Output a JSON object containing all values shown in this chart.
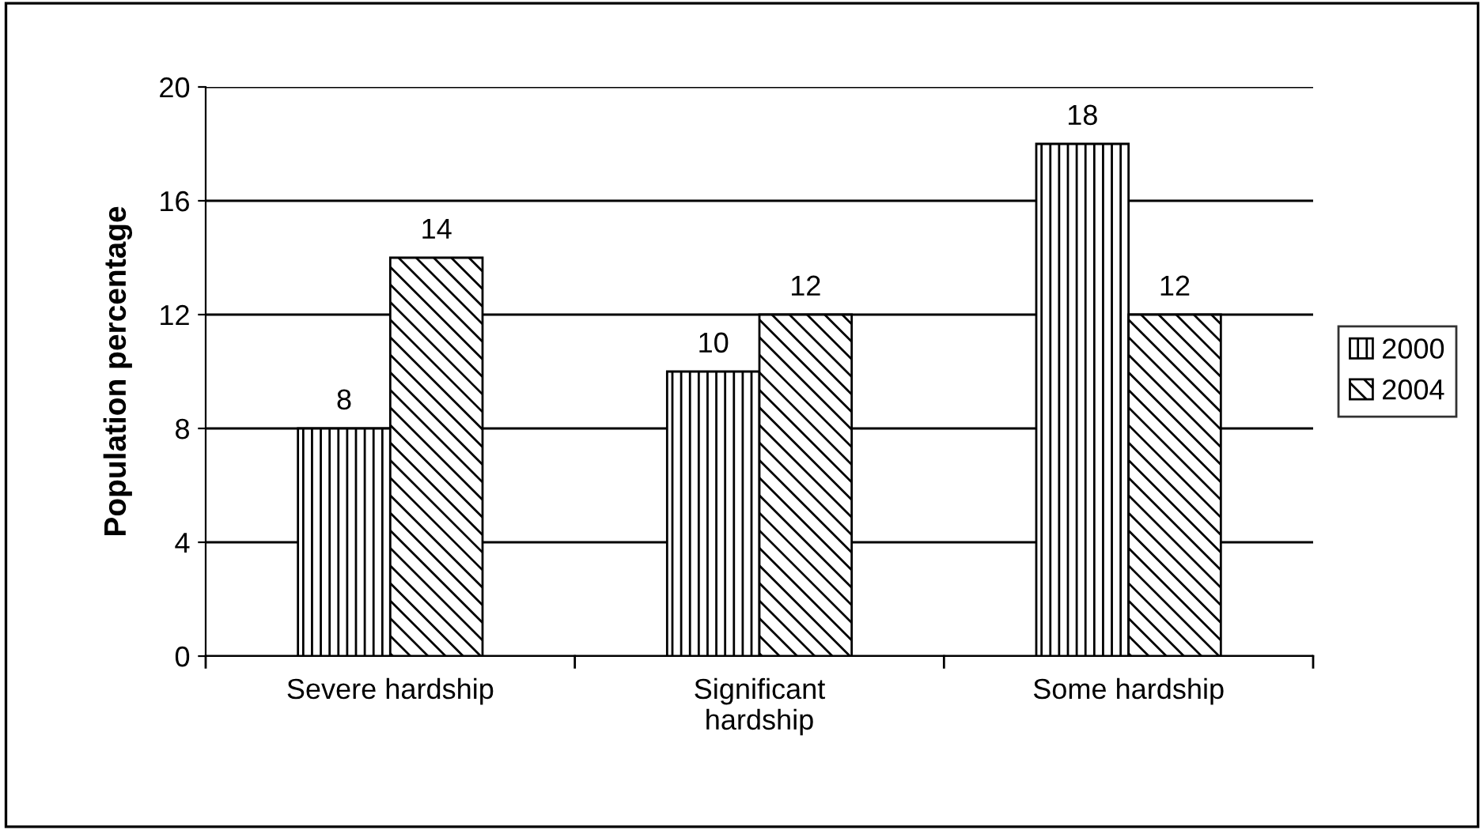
{
  "chart_data": {
    "type": "bar",
    "ylabel": "Population percentage",
    "categories": [
      "Severe hardship",
      "Significant\nhardship",
      "Some hardship"
    ],
    "series": [
      {
        "name": "2000",
        "color": "#000000",
        "values": [
          8,
          10,
          18
        ]
      },
      {
        "name": "2004",
        "color": "#000000",
        "values": [
          14,
          12,
          12
        ]
      }
    ],
    "ylim": [
      0,
      20
    ],
    "yticks": [
      0,
      4,
      8,
      12,
      16,
      20
    ],
    "grid": "y",
    "legend": "right",
    "data_labels": true
  }
}
